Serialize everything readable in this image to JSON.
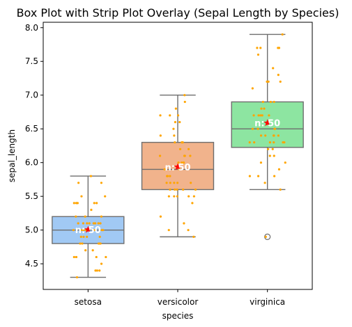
{
  "chart_data": {
    "type": "box",
    "title": "Box Plot with Strip Plot Overlay (Sepal Length by Species)",
    "xlabel": "species",
    "ylabel": "sepal_length",
    "ylim": [
      4.12,
      8.08
    ],
    "yticks": [
      4.5,
      5.0,
      5.5,
      6.0,
      6.5,
      7.0,
      7.5,
      8.0
    ],
    "ytick_labels": [
      "4.5",
      "5.0",
      "5.5",
      "6.0",
      "6.5",
      "7.0",
      "7.5",
      "8.0"
    ],
    "categories": [
      "setosa",
      "versicolor",
      "virginica"
    ],
    "grid": false,
    "colors": {
      "boxes": [
        "#a1c9f4",
        "#f1b38c",
        "#8de5a1"
      ],
      "box_edge": "#6e6e6e",
      "strip_points": "#ffa500",
      "mean_marker": "#ff0000",
      "count_text": "#ffffff"
    },
    "boxes": [
      {
        "category": "setosa",
        "whisker_low": 4.3,
        "q1": 4.8,
        "median": 5.0,
        "q3": 5.2,
        "whisker_high": 5.8,
        "mean": 5.006,
        "outliers": [],
        "count_label": "n: 50"
      },
      {
        "category": "versicolor",
        "whisker_low": 4.9,
        "q1": 5.6,
        "median": 5.9,
        "q3": 6.3,
        "whisker_high": 7.0,
        "mean": 5.936,
        "outliers": [],
        "count_label": "n: 50"
      },
      {
        "category": "virginica",
        "whisker_low": 5.6,
        "q1": 6.225,
        "median": 6.5,
        "q3": 6.9,
        "whisker_high": 7.9,
        "mean": 6.588,
        "outliers": [
          4.9
        ],
        "count_label": "n: 50"
      }
    ],
    "points": [
      [
        5.1,
        4.9,
        4.7,
        4.6,
        5.0,
        5.4,
        4.6,
        5.0,
        4.4,
        4.9,
        5.4,
        4.8,
        4.8,
        4.3,
        5.8,
        5.7,
        5.4,
        5.1,
        5.7,
        5.1,
        5.4,
        5.1,
        4.6,
        5.1,
        4.8,
        5.0,
        5.0,
        5.2,
        5.2,
        4.7,
        4.8,
        5.4,
        5.2,
        5.5,
        4.9,
        5.0,
        5.5,
        4.9,
        4.4,
        5.1,
        5.0,
        4.5,
        4.4,
        5.0,
        5.1,
        4.8,
        5.1,
        4.6,
        5.3,
        5.0
      ],
      [
        7.0,
        6.4,
        6.9,
        5.5,
        6.5,
        5.7,
        6.3,
        4.9,
        6.6,
        5.2,
        5.0,
        5.9,
        6.0,
        6.1,
        5.6,
        6.7,
        5.6,
        5.8,
        6.2,
        5.6,
        5.9,
        6.1,
        6.3,
        6.1,
        6.4,
        6.6,
        6.8,
        6.7,
        6.0,
        5.7,
        5.5,
        5.5,
        5.8,
        6.0,
        5.4,
        6.0,
        6.7,
        6.3,
        5.6,
        5.5,
        5.5,
        6.1,
        5.8,
        5.0,
        5.6,
        5.7,
        5.7,
        6.2,
        5.1,
        5.7
      ],
      [
        6.3,
        5.8,
        7.1,
        6.3,
        6.5,
        7.6,
        4.9,
        7.3,
        6.7,
        7.2,
        6.5,
        6.4,
        6.8,
        5.7,
        5.8,
        6.4,
        6.5,
        7.7,
        7.7,
        6.0,
        6.9,
        5.6,
        7.7,
        6.3,
        6.7,
        7.2,
        6.2,
        6.1,
        6.4,
        7.2,
        7.4,
        7.9,
        6.4,
        6.3,
        6.1,
        7.7,
        6.3,
        6.4,
        6.0,
        6.9,
        6.7,
        6.9,
        5.8,
        6.8,
        6.7,
        6.7,
        6.3,
        6.5,
        6.2,
        5.9
      ]
    ]
  }
}
